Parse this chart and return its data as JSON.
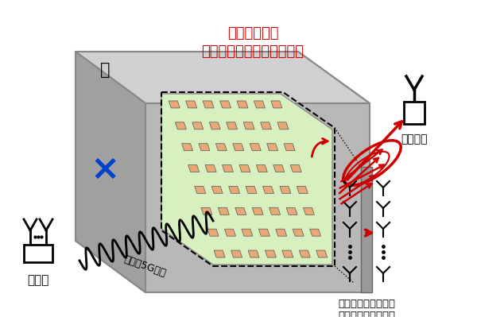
{
  "bg_color": "#ffffff",
  "wall_front_color": "#b8b8b8",
  "wall_top_color": "#d0d0d0",
  "wall_left_color": "#a0a0a0",
  "wall_edge_color": "#888888",
  "array_bg_color": "#d8f0c0",
  "patch_color": "#e8a878",
  "patch_edge_color": "#555555",
  "text_title_line1": "超低消費電力",
  "text_title_line2": "ビームフォーミングを実現",
  "text_kabe": "壁",
  "text_kichi": "基地局",
  "text_keitai": "携帯端末",
  "text_miriha": "ミリ波5G通信",
  "text_relay_line1": "本研究の中継無線機",
  "text_relay_line2": "（壁の両面に設置）",
  "red_color": "#cc0000",
  "blue_color": "#0044cc",
  "black_color": "#000000",
  "figsize": [
    6.0,
    3.99
  ],
  "dpi": 100
}
